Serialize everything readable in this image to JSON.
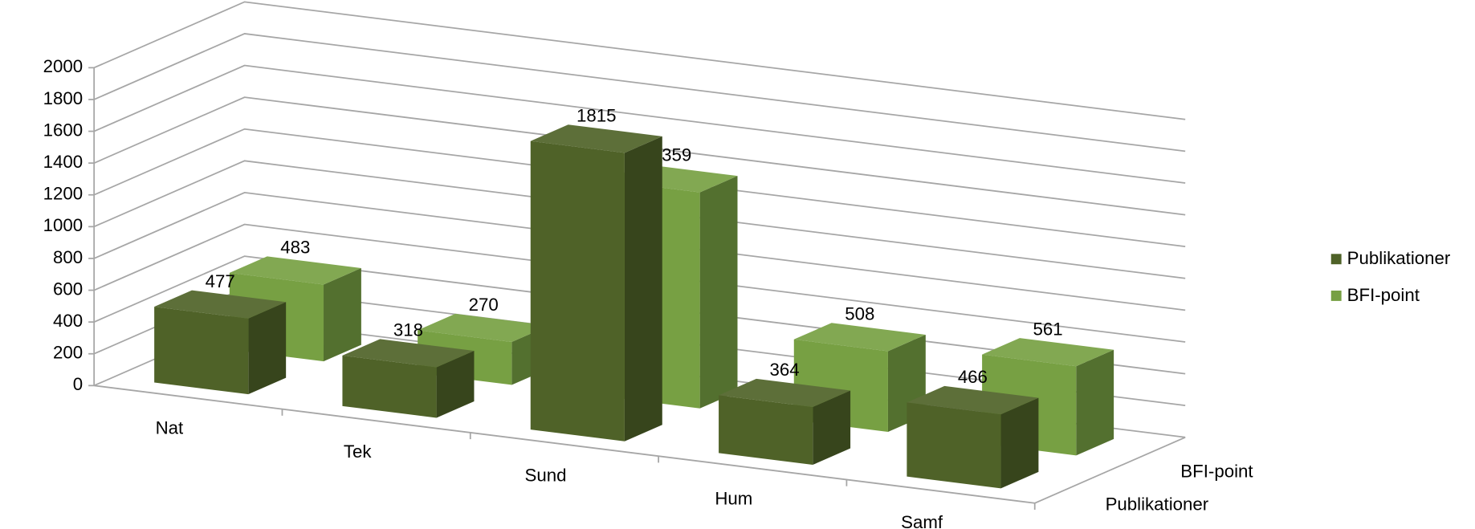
{
  "chart_data": {
    "type": "bar3d",
    "categories": [
      "Nat",
      "Tek",
      "Sund",
      "Hum",
      "Samf"
    ],
    "series": [
      {
        "name": "Publikationer",
        "color": "#4f6228",
        "values": [
          477,
          318,
          1815,
          364,
          466
        ]
      },
      {
        "name": "BFI-point",
        "color": "#77a043",
        "values": [
          483,
          270,
          1359,
          508,
          561
        ]
      }
    ],
    "ylim": [
      0,
      2000
    ],
    "yticks": [
      0,
      200,
      400,
      600,
      800,
      1000,
      1200,
      1400,
      1600,
      1800,
      2000
    ],
    "grid": true,
    "legend": "right"
  }
}
